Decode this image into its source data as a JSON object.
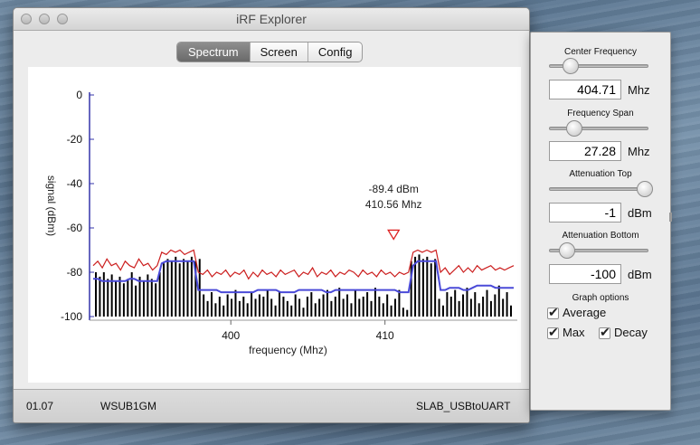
{
  "window": {
    "title": "iRF Explorer"
  },
  "tabs": [
    {
      "label": "Spectrum",
      "active": true
    },
    {
      "label": "Screen",
      "active": false
    },
    {
      "label": "Config",
      "active": false
    }
  ],
  "status": {
    "version": "01.07",
    "station": "WSUB1GM",
    "port": "SLAB_USBtoUART"
  },
  "side": {
    "center_label": "Center Frequency",
    "center_value": "404.71",
    "center_unit": "Mhz",
    "span_label": "Frequency Span",
    "span_value": "27.28",
    "span_unit": "Mhz",
    "att_top_label": "Attenuation Top",
    "att_top_value": "-1",
    "att_top_unit": "dBm",
    "att_bottom_label": "Attenuation Bottom",
    "att_bottom_value": "-100",
    "att_bottom_unit": "dBm",
    "graph_options_label": "Graph options",
    "average_label": "Average",
    "max_label": "Max",
    "decay_label": "Decay",
    "average_checked": true,
    "max_checked": true,
    "decay_checked": true,
    "slider_levels": {
      "center": 0.22,
      "span": 0.25,
      "att_top": 0.96,
      "att_bottom": 0.18
    }
  },
  "chart_data": {
    "type": "bar",
    "xlabel": "frequency (Mhz)",
    "ylabel": "signal (dBm)",
    "xlim": [
      391.07,
      418.35
    ],
    "ylim": [
      -100,
      0
    ],
    "yticks": [
      0,
      -20,
      -40,
      -60,
      -80,
      -100
    ],
    "xticks": [
      400,
      410
    ],
    "marker": {
      "freq_label": "410.56 Mhz",
      "level_label": "-89.4 dBm",
      "x": 410.56,
      "y": -89.4
    },
    "bar_values": [
      -80,
      -82,
      -80,
      -83,
      -81,
      -84,
      -82,
      -85,
      -83,
      -80,
      -86,
      -82,
      -84,
      -81,
      -83,
      -85,
      -80,
      -76,
      -74,
      -75,
      -73,
      -76,
      -74,
      -75,
      -73,
      -75,
      -74,
      -90,
      -93,
      -89,
      -94,
      -91,
      -95,
      -90,
      -92,
      -88,
      -93,
      -91,
      -94,
      -89,
      -92,
      -90,
      -91,
      -88,
      -92,
      -95,
      -89,
      -91,
      -93,
      -95,
      -90,
      -92,
      -96,
      -91,
      -89,
      -94,
      -92,
      -90,
      -88,
      -93,
      -91,
      -87,
      -92,
      -90,
      -94,
      -88,
      -92,
      -91,
      -89,
      -93,
      -87,
      -91,
      -94,
      -90,
      -95,
      -92,
      -88,
      -96,
      -97,
      -75,
      -73,
      -72,
      -74,
      -73,
      -76,
      -74,
      -92,
      -95,
      -89,
      -91,
      -88,
      -93,
      -90,
      -87,
      -92,
      -89,
      -94,
      -91,
      -88,
      -93,
      -90,
      -86,
      -92,
      -89,
      -95
    ],
    "series": [
      {
        "name": "Average",
        "color": "#4a4ad8",
        "values": [
          -83,
          -83,
          -84,
          -84,
          -84,
          -84,
          -84,
          -84,
          -83,
          -83,
          -84,
          -84,
          -84,
          -84,
          -84,
          -76,
          -75,
          -75,
          -75,
          -75,
          -75,
          -75,
          -75,
          -88,
          -88,
          -88,
          -88,
          -88,
          -89,
          -89,
          -89,
          -89,
          -89,
          -89,
          -89,
          -89,
          -88,
          -88,
          -88,
          -88,
          -88,
          -89,
          -89,
          -89,
          -89,
          -88,
          -88,
          -88,
          -88,
          -88,
          -88,
          -89,
          -89,
          -88,
          -88,
          -88,
          -88,
          -88,
          -88,
          -88,
          -88,
          -88,
          -88,
          -88,
          -88,
          -88,
          -88,
          -89,
          -89,
          -89,
          -77,
          -75,
          -75,
          -75,
          -75,
          -75,
          -88,
          -88,
          -87,
          -87,
          -87,
          -88,
          -88,
          -87,
          -86,
          -86,
          -86,
          -86,
          -87,
          -87,
          -87,
          -87,
          -87
        ]
      },
      {
        "name": "Max",
        "color": "#cc1f1f",
        "values": [
          -77,
          -75,
          -78,
          -74,
          -77,
          -76,
          -79,
          -75,
          -77,
          -78,
          -74,
          -77,
          -76,
          -79,
          -77,
          -71,
          -72,
          -70,
          -71,
          -70,
          -72,
          -71,
          -70,
          -80,
          -81,
          -79,
          -82,
          -80,
          -81,
          -79,
          -82,
          -80,
          -81,
          -79,
          -83,
          -80,
          -82,
          -79,
          -81,
          -80,
          -82,
          -79,
          -81,
          -80,
          -79,
          -82,
          -80,
          -81,
          -78,
          -82,
          -80,
          -81,
          -79,
          -82,
          -80,
          -81,
          -79,
          -80,
          -82,
          -79,
          -81,
          -80,
          -82,
          -79,
          -81,
          -80,
          -82,
          -80,
          -81,
          -80,
          -71,
          -70,
          -71,
          -70,
          -71,
          -70,
          -80,
          -78,
          -81,
          -79,
          -77,
          -80,
          -78,
          -80,
          -77,
          -79,
          -78,
          -77,
          -79,
          -78,
          -79,
          -78,
          -77
        ]
      }
    ]
  }
}
